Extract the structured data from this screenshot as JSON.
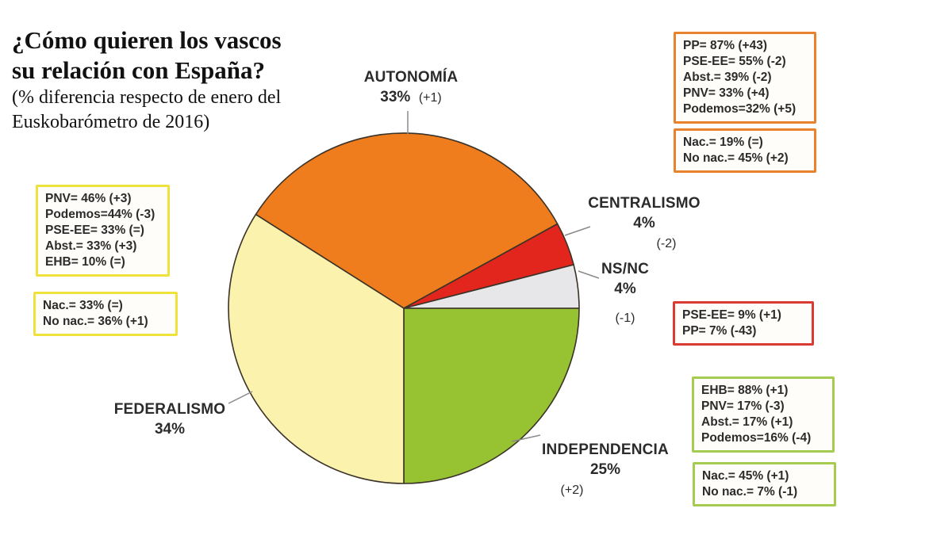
{
  "header": {
    "title_line1": "¿Cómo quieren los vascos",
    "title_line2": "su relación con España?",
    "subtitle_line1": "(% diferencia respecto de enero del",
    "subtitle_line2": "Euskobarómetro de 2016)"
  },
  "chart_data": {
    "type": "pie",
    "title": "¿Cómo quieren los vascos su relación con España?",
    "subtitle": "(% diferencia respecto de enero del Euskobarómetro de 2016)",
    "unit": "%",
    "slices": [
      {
        "label": "AUTONOMÍA",
        "value": 33,
        "pct_label": "33%",
        "diff_label": "(+1)",
        "color": "#EF7D1E"
      },
      {
        "label": "CENTRALISMO",
        "value": 4,
        "pct_label": "4%",
        "diff_label": "(-2)",
        "color": "#E2261D"
      },
      {
        "label": "NS/NC",
        "value": 4,
        "pct_label": "4%",
        "diff_label": "(-1)",
        "color": "#E7E6E9"
      },
      {
        "label": "INDEPENDENCIA",
        "value": 25,
        "pct_label": "25%",
        "diff_label": "(+2)",
        "color": "#97C232"
      },
      {
        "label": "FEDERALISMO",
        "value": 34,
        "pct_label": "34%",
        "diff_label": "",
        "color": "#FBF2AE"
      }
    ],
    "layout": {
      "start_angle_deg": 147.6,
      "direction": "clockwise",
      "stroke_color": "#3B3228",
      "legend": "none",
      "labels": "outside",
      "leader_line_color": "#8A8A8A"
    }
  },
  "annotation_boxes": [
    {
      "id": "autonomia-parties",
      "border_color": "#E8822C",
      "lines": [
        "PP= 87% (+43)",
        "PSE-EE= 55% (-2)",
        "Abst.= 39% (-2)",
        "PNV= 33% (+4)",
        "Podemos=32% (+5)"
      ]
    },
    {
      "id": "autonomia-nationalism",
      "border_color": "#E8822C",
      "lines": [
        "Nac.= 19% (=)",
        "No nac.= 45% (+2)"
      ]
    },
    {
      "id": "federalismo-parties",
      "border_color": "#F0E23C",
      "lines": [
        "PNV= 46% (+3)",
        "Podemos=44% (-3)",
        "PSE-EE= 33% (=)",
        "Abst.= 33% (+3)",
        "EHB= 10% (=)"
      ]
    },
    {
      "id": "federalismo-nationalism",
      "border_color": "#F0E23C",
      "lines": [
        "Nac.= 33% (=)",
        "No nac.= 36% (+1)"
      ]
    },
    {
      "id": "centralismo-parties",
      "border_color": "#D93A32",
      "lines": [
        "PSE-EE= 9% (+1)",
        "PP= 7% (-43)"
      ]
    },
    {
      "id": "independencia-parties",
      "border_color": "#A5CB50",
      "lines": [
        "EHB= 88% (+1)",
        "PNV= 17% (-3)",
        "Abst.= 17% (+1)",
        "Podemos=16% (-4)"
      ]
    },
    {
      "id": "independencia-nationalism",
      "border_color": "#A5CB50",
      "lines": [
        "Nac.= 45% (+1)",
        "No nac.= 7% (-1)"
      ]
    }
  ]
}
